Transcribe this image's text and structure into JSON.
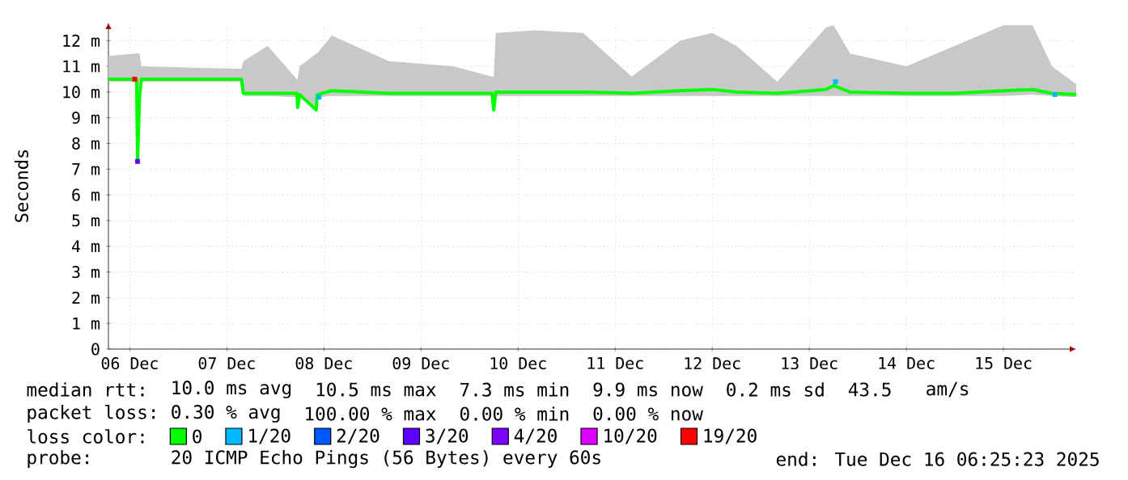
{
  "chart_data": {
    "type": "line",
    "ylabel": "Seconds",
    "xlim": [
      "2025-12-05T18:43",
      "2025-12-15T18:00"
    ],
    "ylim": [
      0,
      12.7
    ],
    "xticks": [
      {
        "value": "2025-12-06",
        "label": "06 Dec"
      },
      {
        "value": "2025-12-07",
        "label": "07 Dec"
      },
      {
        "value": "2025-12-08",
        "label": "08 Dec"
      },
      {
        "value": "2025-12-09",
        "label": "09 Dec"
      },
      {
        "value": "2025-12-10",
        "label": "10 Dec"
      },
      {
        "value": "2025-12-11",
        "label": "11 Dec"
      },
      {
        "value": "2025-12-12",
        "label": "12 Dec"
      },
      {
        "value": "2025-12-13",
        "label": "13 Dec"
      },
      {
        "value": "2025-12-14",
        "label": "14 Dec"
      },
      {
        "value": "2025-12-15",
        "label": "15 Dec"
      }
    ],
    "yticks": [
      0,
      {
        "value": 1,
        "label": "1 m"
      },
      {
        "value": 2,
        "label": "2 m"
      },
      {
        "value": 3,
        "label": "3 m"
      },
      {
        "value": 4,
        "label": "4 m"
      },
      {
        "value": 5,
        "label": "5 m"
      },
      {
        "value": 6,
        "label": "6 m"
      },
      {
        "value": 7,
        "label": "7 m"
      },
      {
        "value": 8,
        "label": "8 m"
      },
      {
        "value": 9,
        "label": "9 m"
      },
      {
        "value": 10,
        "label": "10 m"
      },
      {
        "value": 11,
        "label": "11 m"
      },
      {
        "value": 12,
        "label": "12 m"
      }
    ],
    "grid": true,
    "legend": "bottom",
    "legend_title": "loss color:",
    "series": [
      {
        "name": "0",
        "color": "#00ff00",
        "x": [
          "2025-12-05T18:43",
          "2025-12-06T01:41",
          "2025-12-06T01:55",
          "2025-12-06T02:24",
          "2025-12-06T02:53",
          "2025-12-07T03:36",
          "2025-12-07T04:05",
          "2025-12-07T10:05",
          "2025-12-07T17:17",
          "2025-12-07T17:31",
          "2025-12-07T18:00",
          "2025-12-07T22:05",
          "2025-12-07T22:19",
          "2025-12-08T01:55",
          "2025-12-08T16:05",
          "2025-12-09T07:55",
          "2025-12-09T17:31",
          "2025-12-09T18:00",
          "2025-12-09T18:29",
          "2025-12-10T04:05",
          "2025-12-10T16:05",
          "2025-12-11T04:05",
          "2025-12-11T16:05",
          "2025-12-12T00:00",
          "2025-12-12T06:00",
          "2025-12-12T16:05",
          "2025-12-13T04:05",
          "2025-12-13T06:00",
          "2025-12-13T10:05",
          "2025-12-14T00:00",
          "2025-12-14T12:00",
          "2025-12-15T00:00",
          "2025-12-15T07:12",
          "2025-12-15T12:00",
          "2025-12-15T18:00"
        ],
        "values": [
          10.5,
          10.5,
          7.3,
          9.8,
          10.5,
          10.5,
          9.95,
          9.95,
          9.95,
          9.4,
          9.9,
          9.3,
          9.9,
          10.05,
          9.95,
          9.95,
          9.95,
          9.3,
          10.0,
          10.0,
          10.0,
          9.95,
          10.05,
          10.1,
          10.0,
          9.95,
          10.1,
          10.25,
          10.0,
          9.95,
          9.95,
          10.05,
          10.1,
          9.95,
          9.9
        ],
        "upper": [
          11.4,
          11.5,
          11.5,
          11.5,
          11.0,
          10.9,
          11.2,
          11.8,
          10.5,
          10.5,
          11.0,
          11.5,
          11.5,
          12.2,
          11.2,
          11.0,
          10.6,
          10.6,
          12.3,
          12.4,
          12.3,
          10.6,
          12.0,
          12.3,
          11.8,
          10.4,
          12.5,
          12.6,
          11.5,
          11.0,
          11.8,
          12.6,
          12.6,
          11.0,
          10.3
        ],
        "lower": [
          10.4,
          10.4,
          7.3,
          9.7,
          10.4,
          10.4,
          9.85,
          9.85,
          9.8,
          9.4,
          9.8,
          9.3,
          9.8,
          9.85,
          9.85,
          9.85,
          9.85,
          9.3,
          9.85,
          9.85,
          9.85,
          9.85,
          9.85,
          9.85,
          9.85,
          9.85,
          9.85,
          9.85,
          9.85,
          9.85,
          9.85,
          9.85,
          9.9,
          9.85,
          9.8
        ]
      },
      {
        "name": "1/20",
        "color": "#00b8ff",
        "type": "scatter",
        "x": [
          "2025-12-07T22:48",
          "2025-12-13T06:29",
          "2025-12-15T12:43"
        ],
        "values": [
          9.8,
          10.4,
          9.9
        ]
      },
      {
        "name": "2/20",
        "color": "#0059ff",
        "type": "scatter"
      },
      {
        "name": "3/20",
        "color": "#5e00ff",
        "type": "scatter",
        "x": [
          "2025-12-06T01:55"
        ],
        "values": [
          7.3
        ]
      },
      {
        "name": "4/20",
        "color": "#7e00ff",
        "type": "scatter"
      },
      {
        "name": "10/20",
        "color": "#dd00ff",
        "type": "scatter"
      },
      {
        "name": "19/20",
        "color": "#ff0000",
        "type": "scatter",
        "x": [
          "2025-12-06T01:12"
        ],
        "values": [
          10.5
        ]
      }
    ],
    "annotations": [
      "median rtt:",
      "10.0 ms avg",
      "10.5 ms max",
      "7.3 ms min",
      "9.9 ms now",
      "0.2 ms sd",
      "43.5",
      "am/s",
      "packet loss:",
      "0.30 % avg",
      "100.00 % max",
      "0.00 % min",
      "0.00 % now",
      "probe:",
      "20 ICMP Echo Pings (56 Bytes) every 60s",
      "end: Tue Dec 16 06:25:23 2025"
    ]
  }
}
